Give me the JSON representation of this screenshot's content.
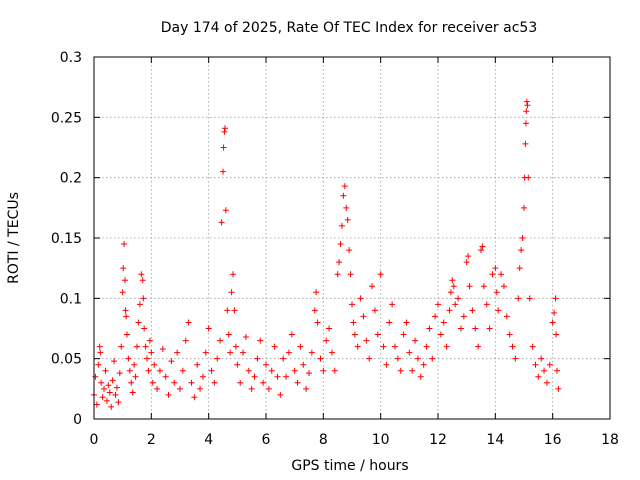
{
  "chart_data": {
    "type": "scatter",
    "title": "Day 174 of 2025, Rate Of TEC Index for receiver ac53",
    "xlabel": "GPS time / hours",
    "ylabel": "ROTI / TECUs",
    "xlim": [
      0,
      18
    ],
    "ylim": [
      0,
      0.3
    ],
    "x_ticks": [
      0,
      2,
      4,
      6,
      8,
      10,
      12,
      14,
      16,
      18
    ],
    "y_ticks": [
      0,
      0.05,
      0.1,
      0.15,
      0.2,
      0.25,
      0.3
    ],
    "x_tick_labels": [
      "0",
      "2",
      "4",
      "6",
      "8",
      "10",
      "12",
      "14",
      "16",
      "18"
    ],
    "y_tick_labels": [
      "0",
      "0.05",
      "0.1",
      "0.15",
      "0.2",
      "0.25",
      "0.3"
    ],
    "grid": true,
    "marker": "+",
    "color": "#ff0000",
    "series": [
      {
        "name": "ROTI",
        "points": [
          [
            0.0,
            0.02
          ],
          [
            0.05,
            0.035
          ],
          [
            0.1,
            0.012
          ],
          [
            0.15,
            0.045
          ],
          [
            0.2,
            0.06
          ],
          [
            0.22,
            0.055
          ],
          [
            0.25,
            0.03
          ],
          [
            0.3,
            0.018
          ],
          [
            0.35,
            0.025
          ],
          [
            0.4,
            0.04
          ],
          [
            0.45,
            0.015
          ],
          [
            0.5,
            0.028
          ],
          [
            0.55,
            0.022
          ],
          [
            0.6,
            0.01
          ],
          [
            0.65,
            0.032
          ],
          [
            0.7,
            0.048
          ],
          [
            0.75,
            0.02
          ],
          [
            0.8,
            0.026
          ],
          [
            0.85,
            0.014
          ],
          [
            0.9,
            0.038
          ],
          [
            0.95,
            0.06
          ],
          [
            1.0,
            0.105
          ],
          [
            1.02,
            0.125
          ],
          [
            1.05,
            0.145
          ],
          [
            1.08,
            0.115
          ],
          [
            1.1,
            0.09
          ],
          [
            1.12,
            0.085
          ],
          [
            1.15,
            0.07
          ],
          [
            1.2,
            0.05
          ],
          [
            1.25,
            0.04
          ],
          [
            1.3,
            0.03
          ],
          [
            1.35,
            0.022
          ],
          [
            1.4,
            0.045
          ],
          [
            1.45,
            0.035
          ],
          [
            1.5,
            0.06
          ],
          [
            1.55,
            0.08
          ],
          [
            1.6,
            0.095
          ],
          [
            1.65,
            0.12
          ],
          [
            1.7,
            0.115
          ],
          [
            1.72,
            0.1
          ],
          [
            1.75,
            0.075
          ],
          [
            1.8,
            0.06
          ],
          [
            1.85,
            0.05
          ],
          [
            1.9,
            0.04
          ],
          [
            1.95,
            0.065
          ],
          [
            2.0,
            0.055
          ],
          [
            2.05,
            0.03
          ],
          [
            2.1,
            0.045
          ],
          [
            2.2,
            0.025
          ],
          [
            2.3,
            0.04
          ],
          [
            2.4,
            0.058
          ],
          [
            2.5,
            0.035
          ],
          [
            2.6,
            0.02
          ],
          [
            2.7,
            0.048
          ],
          [
            2.8,
            0.03
          ],
          [
            2.9,
            0.055
          ],
          [
            3.0,
            0.025
          ],
          [
            3.1,
            0.04
          ],
          [
            3.2,
            0.065
          ],
          [
            3.3,
            0.08
          ],
          [
            3.4,
            0.03
          ],
          [
            3.5,
            0.018
          ],
          [
            3.6,
            0.045
          ],
          [
            3.7,
            0.025
          ],
          [
            3.8,
            0.035
          ],
          [
            3.9,
            0.055
          ],
          [
            4.0,
            0.075
          ],
          [
            4.1,
            0.04
          ],
          [
            4.2,
            0.03
          ],
          [
            4.3,
            0.05
          ],
          [
            4.4,
            0.065
          ],
          [
            4.45,
            0.163
          ],
          [
            4.5,
            0.205
          ],
          [
            4.52,
            0.225
          ],
          [
            4.55,
            0.238
          ],
          [
            4.57,
            0.241
          ],
          [
            4.6,
            0.173
          ],
          [
            4.65,
            0.09
          ],
          [
            4.7,
            0.07
          ],
          [
            4.75,
            0.055
          ],
          [
            4.8,
            0.105
          ],
          [
            4.85,
            0.12
          ],
          [
            4.9,
            0.09
          ],
          [
            4.95,
            0.06
          ],
          [
            5.0,
            0.045
          ],
          [
            5.1,
            0.03
          ],
          [
            5.2,
            0.055
          ],
          [
            5.3,
            0.068
          ],
          [
            5.4,
            0.04
          ],
          [
            5.5,
            0.025
          ],
          [
            5.6,
            0.035
          ],
          [
            5.7,
            0.05
          ],
          [
            5.8,
            0.065
          ],
          [
            5.9,
            0.03
          ],
          [
            6.0,
            0.045
          ],
          [
            6.1,
            0.025
          ],
          [
            6.2,
            0.04
          ],
          [
            6.3,
            0.06
          ],
          [
            6.4,
            0.035
          ],
          [
            6.5,
            0.02
          ],
          [
            6.6,
            0.05
          ],
          [
            6.7,
            0.035
          ],
          [
            6.8,
            0.055
          ],
          [
            6.9,
            0.07
          ],
          [
            7.0,
            0.04
          ],
          [
            7.1,
            0.03
          ],
          [
            7.2,
            0.06
          ],
          [
            7.3,
            0.045
          ],
          [
            7.4,
            0.025
          ],
          [
            7.5,
            0.038
          ],
          [
            7.6,
            0.055
          ],
          [
            7.7,
            0.09
          ],
          [
            7.75,
            0.105
          ],
          [
            7.8,
            0.08
          ],
          [
            7.9,
            0.05
          ],
          [
            8.0,
            0.04
          ],
          [
            8.1,
            0.065
          ],
          [
            8.2,
            0.075
          ],
          [
            8.3,
            0.055
          ],
          [
            8.4,
            0.04
          ],
          [
            8.5,
            0.12
          ],
          [
            8.55,
            0.13
          ],
          [
            8.6,
            0.145
          ],
          [
            8.65,
            0.16
          ],
          [
            8.7,
            0.185
          ],
          [
            8.75,
            0.193
          ],
          [
            8.8,
            0.175
          ],
          [
            8.85,
            0.165
          ],
          [
            8.9,
            0.14
          ],
          [
            8.95,
            0.12
          ],
          [
            9.0,
            0.095
          ],
          [
            9.05,
            0.08
          ],
          [
            9.1,
            0.07
          ],
          [
            9.2,
            0.06
          ],
          [
            9.3,
            0.1
          ],
          [
            9.4,
            0.085
          ],
          [
            9.5,
            0.065
          ],
          [
            9.6,
            0.05
          ],
          [
            9.7,
            0.11
          ],
          [
            9.8,
            0.09
          ],
          [
            9.9,
            0.07
          ],
          [
            10.0,
            0.12
          ],
          [
            10.1,
            0.06
          ],
          [
            10.2,
            0.045
          ],
          [
            10.3,
            0.08
          ],
          [
            10.4,
            0.095
          ],
          [
            10.5,
            0.06
          ],
          [
            10.6,
            0.05
          ],
          [
            10.7,
            0.04
          ],
          [
            10.8,
            0.07
          ],
          [
            10.9,
            0.08
          ],
          [
            11.0,
            0.055
          ],
          [
            11.1,
            0.04
          ],
          [
            11.2,
            0.065
          ],
          [
            11.3,
            0.05
          ],
          [
            11.4,
            0.035
          ],
          [
            11.5,
            0.045
          ],
          [
            11.6,
            0.06
          ],
          [
            11.7,
            0.075
          ],
          [
            11.8,
            0.05
          ],
          [
            11.9,
            0.085
          ],
          [
            12.0,
            0.095
          ],
          [
            12.1,
            0.07
          ],
          [
            12.2,
            0.08
          ],
          [
            12.3,
            0.06
          ],
          [
            12.4,
            0.09
          ],
          [
            12.45,
            0.105
          ],
          [
            12.5,
            0.115
          ],
          [
            12.55,
            0.11
          ],
          [
            12.6,
            0.095
          ],
          [
            12.7,
            0.1
          ],
          [
            12.8,
            0.075
          ],
          [
            12.9,
            0.085
          ],
          [
            13.0,
            0.13
          ],
          [
            13.05,
            0.135
          ],
          [
            13.1,
            0.11
          ],
          [
            13.2,
            0.09
          ],
          [
            13.3,
            0.075
          ],
          [
            13.4,
            0.06
          ],
          [
            13.5,
            0.14
          ],
          [
            13.55,
            0.143
          ],
          [
            13.6,
            0.11
          ],
          [
            13.7,
            0.095
          ],
          [
            13.8,
            0.075
          ],
          [
            13.9,
            0.12
          ],
          [
            14.0,
            0.125
          ],
          [
            14.05,
            0.105
          ],
          [
            14.1,
            0.09
          ],
          [
            14.2,
            0.12
          ],
          [
            14.3,
            0.11
          ],
          [
            14.4,
            0.085
          ],
          [
            14.5,
            0.07
          ],
          [
            14.6,
            0.06
          ],
          [
            14.7,
            0.05
          ],
          [
            14.8,
            0.1
          ],
          [
            14.85,
            0.125
          ],
          [
            14.9,
            0.14
          ],
          [
            14.95,
            0.15
          ],
          [
            15.0,
            0.175
          ],
          [
            15.02,
            0.2
          ],
          [
            15.05,
            0.228
          ],
          [
            15.07,
            0.245
          ],
          [
            15.08,
            0.255
          ],
          [
            15.1,
            0.263
          ],
          [
            15.12,
            0.26
          ],
          [
            15.15,
            0.2
          ],
          [
            15.2,
            0.1
          ],
          [
            15.3,
            0.06
          ],
          [
            15.4,
            0.045
          ],
          [
            15.5,
            0.035
          ],
          [
            15.6,
            0.05
          ],
          [
            15.7,
            0.04
          ],
          [
            15.8,
            0.03
          ],
          [
            15.9,
            0.045
          ],
          [
            16.0,
            0.08
          ],
          [
            16.05,
            0.088
          ],
          [
            16.1,
            0.1
          ],
          [
            16.12,
            0.07
          ],
          [
            16.15,
            0.04
          ],
          [
            16.2,
            0.025
          ]
        ]
      }
    ]
  }
}
